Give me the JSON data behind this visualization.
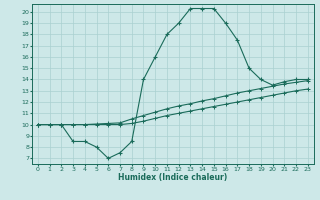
{
  "xlabel": "Humidex (Indice chaleur)",
  "bg_color": "#cde8e8",
  "line_color": "#1a6b5a",
  "grid_color": "#aad0d0",
  "xlim": [
    -0.5,
    23.5
  ],
  "ylim": [
    6.5,
    20.7
  ],
  "yticks": [
    7,
    8,
    9,
    10,
    11,
    12,
    13,
    14,
    15,
    16,
    17,
    18,
    19,
    20
  ],
  "xticks": [
    0,
    1,
    2,
    3,
    4,
    5,
    6,
    7,
    8,
    9,
    10,
    11,
    12,
    13,
    14,
    15,
    16,
    17,
    18,
    19,
    20,
    21,
    22,
    23
  ],
  "line1_x": [
    0,
    1,
    2,
    3,
    4,
    5,
    6,
    7,
    8,
    9,
    10,
    11,
    12,
    13,
    14,
    15,
    16,
    17,
    18,
    19,
    20,
    21,
    22,
    23
  ],
  "line1_y": [
    10,
    10,
    10,
    8.5,
    8.5,
    8.0,
    7.0,
    7.5,
    8.5,
    14.0,
    16.0,
    18.0,
    19.0,
    20.3,
    20.3,
    20.3,
    19.0,
    17.5,
    15.0,
    14.0,
    13.5,
    13.8,
    14.0,
    14.0
  ],
  "line2_x": [
    0,
    1,
    2,
    3,
    4,
    5,
    6,
    7,
    8,
    9,
    10,
    11,
    12,
    13,
    14,
    15,
    16,
    17,
    18,
    19,
    20,
    21,
    22,
    23
  ],
  "line2_y": [
    10.0,
    10.0,
    10.0,
    10.0,
    10.0,
    10.05,
    10.1,
    10.15,
    10.5,
    10.8,
    11.1,
    11.4,
    11.65,
    11.85,
    12.1,
    12.3,
    12.55,
    12.8,
    13.0,
    13.2,
    13.4,
    13.6,
    13.75,
    13.9
  ],
  "line3_x": [
    0,
    1,
    2,
    3,
    4,
    5,
    6,
    7,
    8,
    9,
    10,
    11,
    12,
    13,
    14,
    15,
    16,
    17,
    18,
    19,
    20,
    21,
    22,
    23
  ],
  "line3_y": [
    10.0,
    10.0,
    10.0,
    10.0,
    10.0,
    10.0,
    10.0,
    10.0,
    10.1,
    10.3,
    10.55,
    10.8,
    11.0,
    11.2,
    11.4,
    11.6,
    11.8,
    12.0,
    12.2,
    12.4,
    12.6,
    12.8,
    13.0,
    13.15
  ]
}
